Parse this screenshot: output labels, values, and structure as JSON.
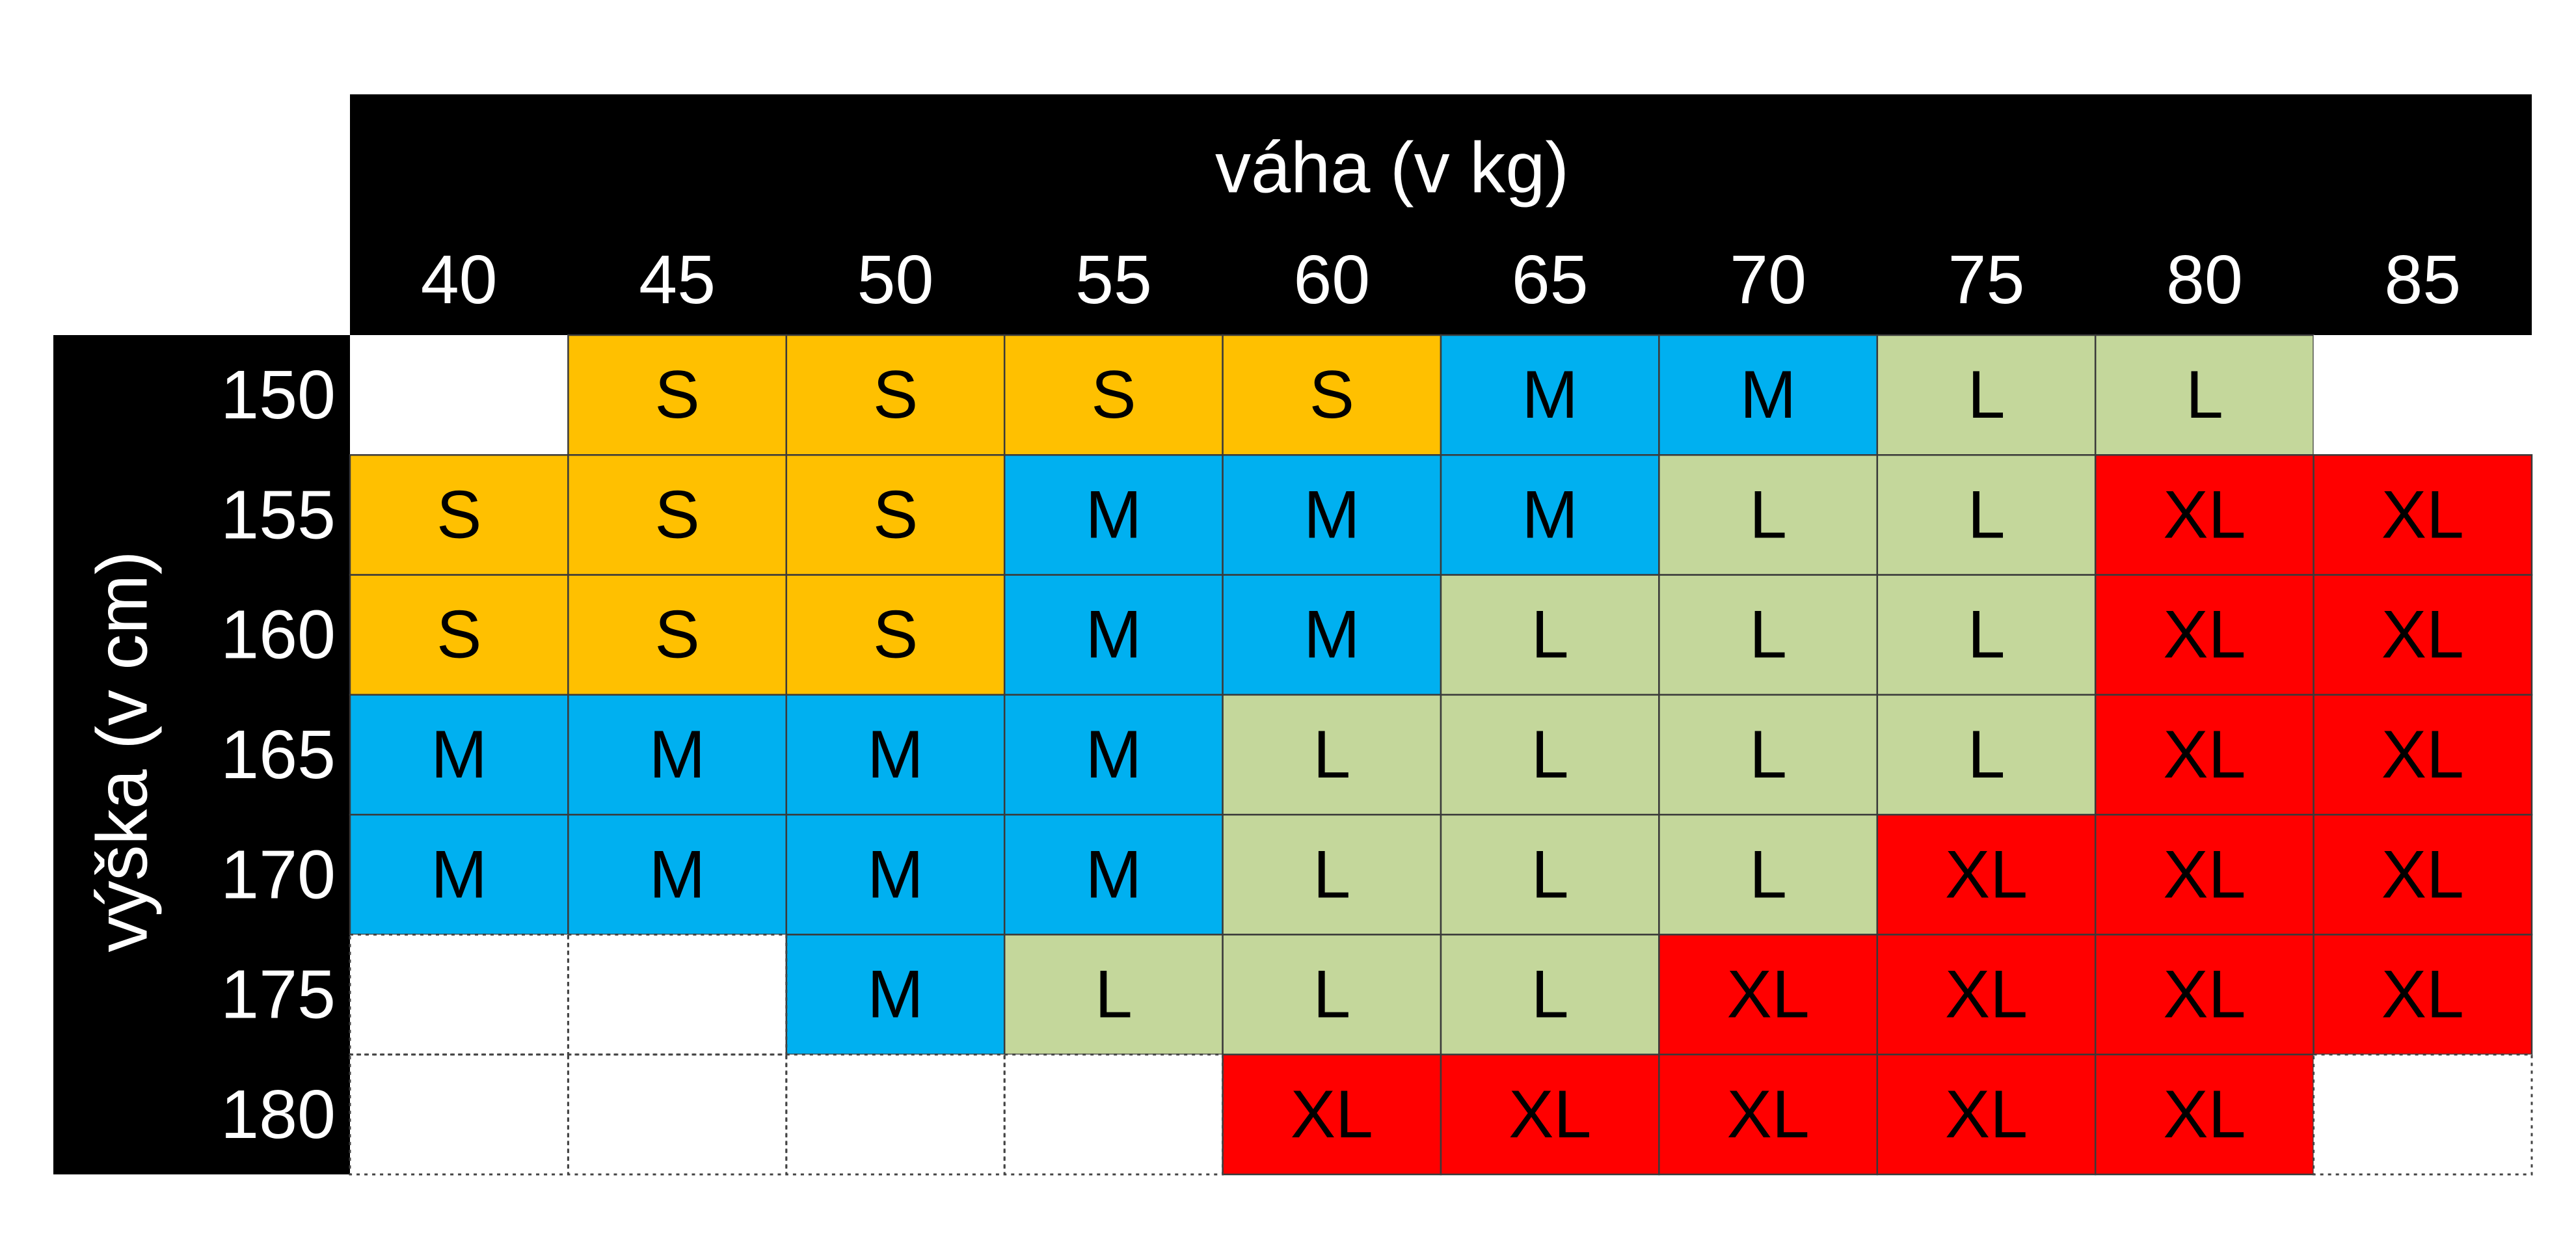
{
  "chart_data": {
    "type": "heatmap",
    "title": "",
    "xlabel": "váha (v kg)",
    "ylabel": "výška (v cm)",
    "x": [
      "40",
      "45",
      "50",
      "55",
      "60",
      "65",
      "70",
      "75",
      "80",
      "85"
    ],
    "y": [
      "150",
      "155",
      "160",
      "165",
      "170",
      "175",
      "180"
    ],
    "grid": true,
    "legend": "none",
    "values": [
      [
        "",
        "S",
        "S",
        "S",
        "S",
        "M",
        "M",
        "L",
        "L",
        ""
      ],
      [
        "S",
        "S",
        "S",
        "M",
        "M",
        "M",
        "L",
        "L",
        "XL",
        "XL"
      ],
      [
        "S",
        "S",
        "S",
        "M",
        "M",
        "L",
        "L",
        "L",
        "XL",
        "XL"
      ],
      [
        "M",
        "M",
        "M",
        "M",
        "L",
        "L",
        "L",
        "L",
        "XL",
        "XL"
      ],
      [
        "M",
        "M",
        "M",
        "M",
        "L",
        "L",
        "L",
        "XL",
        "XL",
        "XL"
      ],
      [
        "",
        "",
        "M",
        "L",
        "L",
        "L",
        "XL",
        "XL",
        "XL",
        "XL"
      ],
      [
        "",
        "",
        "",
        "",
        "XL",
        "XL",
        "XL",
        "XL",
        "XL",
        ""
      ]
    ],
    "colors": {
      "S": "#ffc000",
      "M": "#00b0f0",
      "L": "#c4d79b",
      "XL": "#ff0000",
      "empty": "#ffffff",
      "header": "#000000",
      "header_text": "#ffffff",
      "cell_text": "#000000"
    }
  }
}
